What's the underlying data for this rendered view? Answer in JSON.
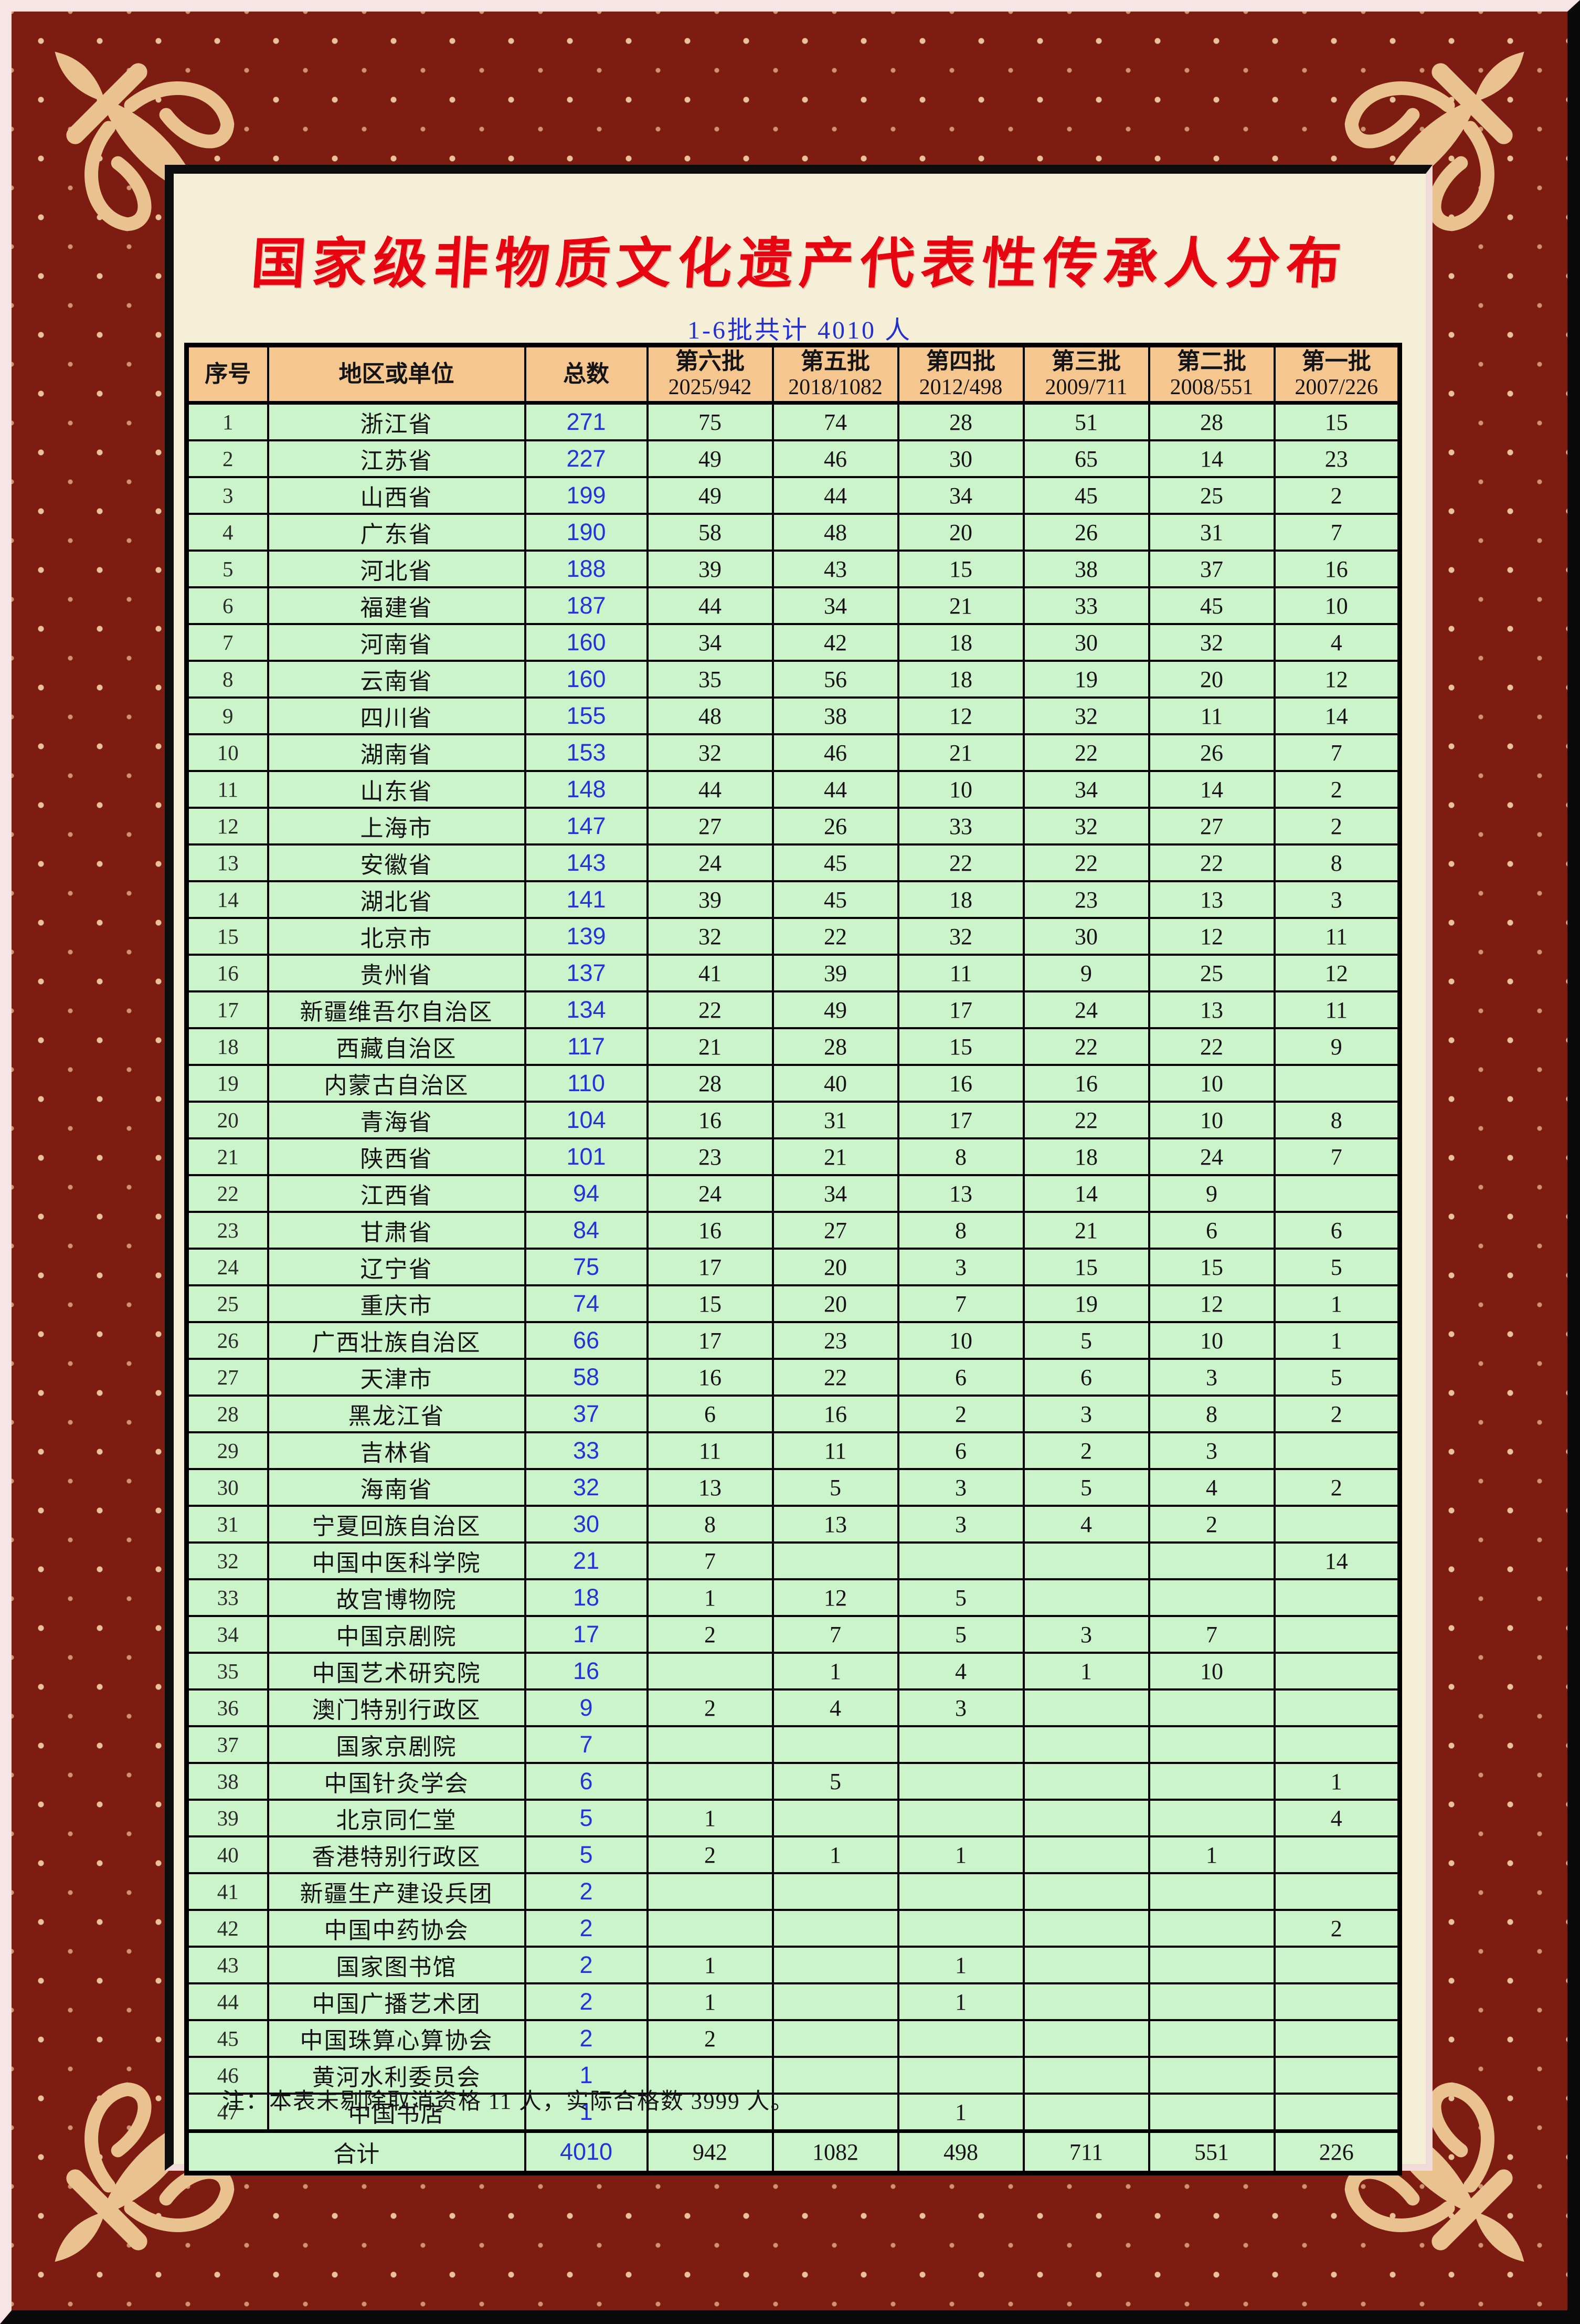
{
  "page": {
    "title": "国家级非物质文化遗产代表性传承人分布",
    "subtitle": "1-6批共计 4010 人",
    "note": "注：本表未剔除取消资格 11 人，实际合格数 3999 人。"
  },
  "colors": {
    "frame_maroon": "#7d1c11",
    "frame_dot_gold": "#f0cc9e",
    "outer_edge_pink": "#f8e4e4",
    "outer_edge_black": "#0a0a0a",
    "content_cream": "#f5efd8",
    "header_peach": "#f6c68f",
    "row_green": "#ccf4ca",
    "grid_black": "#000000",
    "title_red": "#e60410",
    "subtitle_blue": "#2230cf",
    "total_blue": "#2233dd"
  },
  "table": {
    "headers": {
      "no": "序号",
      "region": "地区或单位",
      "total": "总数",
      "batches": [
        {
          "name": "第六批",
          "year": "2025/942"
        },
        {
          "name": "第五批",
          "year": "2018/1082"
        },
        {
          "name": "第四批",
          "year": "2012/498"
        },
        {
          "name": "第三批",
          "year": "2009/711"
        },
        {
          "name": "第二批",
          "year": "2008/551"
        },
        {
          "name": "第一批",
          "year": "2007/226"
        }
      ]
    },
    "rows": [
      {
        "no": 1,
        "region": "浙江省",
        "total": 271,
        "b6": 75,
        "b5": 74,
        "b4": 28,
        "b3": 51,
        "b2": 28,
        "b1": 15
      },
      {
        "no": 2,
        "region": "江苏省",
        "total": 227,
        "b6": 49,
        "b5": 46,
        "b4": 30,
        "b3": 65,
        "b2": 14,
        "b1": 23
      },
      {
        "no": 3,
        "region": "山西省",
        "total": 199,
        "b6": 49,
        "b5": 44,
        "b4": 34,
        "b3": 45,
        "b2": 25,
        "b1": 2
      },
      {
        "no": 4,
        "region": "广东省",
        "total": 190,
        "b6": 58,
        "b5": 48,
        "b4": 20,
        "b3": 26,
        "b2": 31,
        "b1": 7
      },
      {
        "no": 5,
        "region": "河北省",
        "total": 188,
        "b6": 39,
        "b5": 43,
        "b4": 15,
        "b3": 38,
        "b2": 37,
        "b1": 16
      },
      {
        "no": 6,
        "region": "福建省",
        "total": 187,
        "b6": 44,
        "b5": 34,
        "b4": 21,
        "b3": 33,
        "b2": 45,
        "b1": 10
      },
      {
        "no": 7,
        "region": "河南省",
        "total": 160,
        "b6": 34,
        "b5": 42,
        "b4": 18,
        "b3": 30,
        "b2": 32,
        "b1": 4
      },
      {
        "no": 8,
        "region": "云南省",
        "total": 160,
        "b6": 35,
        "b5": 56,
        "b4": 18,
        "b3": 19,
        "b2": 20,
        "b1": 12
      },
      {
        "no": 9,
        "region": "四川省",
        "total": 155,
        "b6": 48,
        "b5": 38,
        "b4": 12,
        "b3": 32,
        "b2": 11,
        "b1": 14
      },
      {
        "no": 10,
        "region": "湖南省",
        "total": 153,
        "b6": 32,
        "b5": 46,
        "b4": 21,
        "b3": 22,
        "b2": 26,
        "b1": 7
      },
      {
        "no": 11,
        "region": "山东省",
        "total": 148,
        "b6": 44,
        "b5": 44,
        "b4": 10,
        "b3": 34,
        "b2": 14,
        "b1": 2
      },
      {
        "no": 12,
        "region": "上海市",
        "total": 147,
        "b6": 27,
        "b5": 26,
        "b4": 33,
        "b3": 32,
        "b2": 27,
        "b1": 2
      },
      {
        "no": 13,
        "region": "安徽省",
        "total": 143,
        "b6": 24,
        "b5": 45,
        "b4": 22,
        "b3": 22,
        "b2": 22,
        "b1": 8
      },
      {
        "no": 14,
        "region": "湖北省",
        "total": 141,
        "b6": 39,
        "b5": 45,
        "b4": 18,
        "b3": 23,
        "b2": 13,
        "b1": 3
      },
      {
        "no": 15,
        "region": "北京市",
        "total": 139,
        "b6": 32,
        "b5": 22,
        "b4": 32,
        "b3": 30,
        "b2": 12,
        "b1": 11
      },
      {
        "no": 16,
        "region": "贵州省",
        "total": 137,
        "b6": 41,
        "b5": 39,
        "b4": 11,
        "b3": 9,
        "b2": 25,
        "b1": 12
      },
      {
        "no": 17,
        "region": "新疆维吾尔自治区",
        "total": 134,
        "b6": 22,
        "b5": 49,
        "b4": 17,
        "b3": 24,
        "b2": 13,
        "b1": 11
      },
      {
        "no": 18,
        "region": "西藏自治区",
        "total": 117,
        "b6": 21,
        "b5": 28,
        "b4": 15,
        "b3": 22,
        "b2": 22,
        "b1": 9
      },
      {
        "no": 19,
        "region": "内蒙古自治区",
        "total": 110,
        "b6": 28,
        "b5": 40,
        "b4": 16,
        "b3": 16,
        "b2": 10,
        "b1": ""
      },
      {
        "no": 20,
        "region": "青海省",
        "total": 104,
        "b6": 16,
        "b5": 31,
        "b4": 17,
        "b3": 22,
        "b2": 10,
        "b1": 8
      },
      {
        "no": 21,
        "region": "陕西省",
        "total": 101,
        "b6": 23,
        "b5": 21,
        "b4": 8,
        "b3": 18,
        "b2": 24,
        "b1": 7
      },
      {
        "no": 22,
        "region": "江西省",
        "total": 94,
        "b6": 24,
        "b5": 34,
        "b4": 13,
        "b3": 14,
        "b2": 9,
        "b1": ""
      },
      {
        "no": 23,
        "region": "甘肃省",
        "total": 84,
        "b6": 16,
        "b5": 27,
        "b4": 8,
        "b3": 21,
        "b2": 6,
        "b1": 6
      },
      {
        "no": 24,
        "region": "辽宁省",
        "total": 75,
        "b6": 17,
        "b5": 20,
        "b4": 3,
        "b3": 15,
        "b2": 15,
        "b1": 5
      },
      {
        "no": 25,
        "region": "重庆市",
        "total": 74,
        "b6": 15,
        "b5": 20,
        "b4": 7,
        "b3": 19,
        "b2": 12,
        "b1": 1
      },
      {
        "no": 26,
        "region": "广西壮族自治区",
        "total": 66,
        "b6": 17,
        "b5": 23,
        "b4": 10,
        "b3": 5,
        "b2": 10,
        "b1": 1
      },
      {
        "no": 27,
        "region": "天津市",
        "total": 58,
        "b6": 16,
        "b5": 22,
        "b4": 6,
        "b3": 6,
        "b2": 3,
        "b1": 5
      },
      {
        "no": 28,
        "region": "黑龙江省",
        "total": 37,
        "b6": 6,
        "b5": 16,
        "b4": 2,
        "b3": 3,
        "b2": 8,
        "b1": 2
      },
      {
        "no": 29,
        "region": "吉林省",
        "total": 33,
        "b6": 11,
        "b5": 11,
        "b4": 6,
        "b3": 2,
        "b2": 3,
        "b1": ""
      },
      {
        "no": 30,
        "region": "海南省",
        "total": 32,
        "b6": 13,
        "b5": 5,
        "b4": 3,
        "b3": 5,
        "b2": 4,
        "b1": 2
      },
      {
        "no": 31,
        "region": "宁夏回族自治区",
        "total": 30,
        "b6": 8,
        "b5": 13,
        "b4": 3,
        "b3": 4,
        "b2": 2,
        "b1": ""
      },
      {
        "no": 32,
        "region": "中国中医科学院",
        "total": 21,
        "b6": 7,
        "b5": "",
        "b4": "",
        "b3": "",
        "b2": "",
        "b1": 14
      },
      {
        "no": 33,
        "region": "故宫博物院",
        "total": 18,
        "b6": 1,
        "b5": 12,
        "b4": 5,
        "b3": "",
        "b2": "",
        "b1": ""
      },
      {
        "no": 34,
        "region": "中国京剧院",
        "total": 17,
        "b6": 2,
        "b5": 7,
        "b4": 5,
        "b3": 3,
        "b2": 7,
        "b1": ""
      },
      {
        "no": 35,
        "region": "中国艺术研究院",
        "total": 16,
        "b6": "",
        "b5": 1,
        "b4": 4,
        "b3": 1,
        "b2": 10,
        "b1": ""
      },
      {
        "no": 36,
        "region": "澳门特别行政区",
        "total": 9,
        "b6": 2,
        "b5": 4,
        "b4": 3,
        "b3": "",
        "b2": "",
        "b1": ""
      },
      {
        "no": 37,
        "region": "国家京剧院",
        "total": 7,
        "b6": "",
        "b5": "",
        "b4": "",
        "b3": "",
        "b2": "",
        "b1": ""
      },
      {
        "no": 38,
        "region": "中国针灸学会",
        "total": 6,
        "b6": "",
        "b5": 5,
        "b4": "",
        "b3": "",
        "b2": "",
        "b1": 1
      },
      {
        "no": 39,
        "region": "北京同仁堂",
        "total": 5,
        "b6": 1,
        "b5": "",
        "b4": "",
        "b3": "",
        "b2": "",
        "b1": 4
      },
      {
        "no": 40,
        "region": "香港特别行政区",
        "total": 5,
        "b6": 2,
        "b5": 1,
        "b4": 1,
        "b3": "",
        "b2": 1,
        "b1": ""
      },
      {
        "no": 41,
        "region": "新疆生产建设兵团",
        "total": 2,
        "b6": "",
        "b5": "",
        "b4": "",
        "b3": "",
        "b2": "",
        "b1": ""
      },
      {
        "no": 42,
        "region": "中国中药协会",
        "total": 2,
        "b6": "",
        "b5": "",
        "b4": "",
        "b3": "",
        "b2": "",
        "b1": 2
      },
      {
        "no": 43,
        "region": "国家图书馆",
        "total": 2,
        "b6": 1,
        "b5": "",
        "b4": 1,
        "b3": "",
        "b2": "",
        "b1": ""
      },
      {
        "no": 44,
        "region": "中国广播艺术团",
        "total": 2,
        "b6": 1,
        "b5": "",
        "b4": 1,
        "b3": "",
        "b2": "",
        "b1": ""
      },
      {
        "no": 45,
        "region": "中国珠算心算协会",
        "total": 2,
        "b6": 2,
        "b5": "",
        "b4": "",
        "b3": "",
        "b2": "",
        "b1": ""
      },
      {
        "no": 46,
        "region": "黄河水利委员会",
        "total": 1,
        "b6": "",
        "b5": "",
        "b4": "",
        "b3": "",
        "b2": "",
        "b1": ""
      },
      {
        "no": 47,
        "region": "中国书店",
        "total": 1,
        "b6": "",
        "b5": "",
        "b4": 1,
        "b3": "",
        "b2": "",
        "b1": ""
      }
    ],
    "total_row": {
      "label": "合计",
      "total": 4010,
      "b6": 942,
      "b5": 1082,
      "b4": 498,
      "b3": 711,
      "b2": 551,
      "b1": 226
    }
  }
}
